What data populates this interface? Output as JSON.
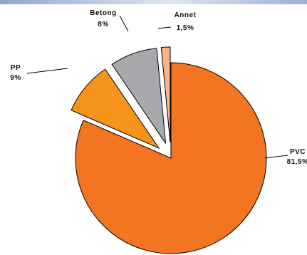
{
  "chart_data": {
    "type": "pie",
    "exploded": true,
    "slices": [
      {
        "label": "PVC",
        "value_text": "81,5%",
        "value": 81.5,
        "color": "#f47521"
      },
      {
        "label": "PP",
        "value_text": "9%",
        "value": 9,
        "color": "#f7941d"
      },
      {
        "label": "Betong",
        "value_text": "8%",
        "value": 8,
        "color": "#a7a9ac"
      },
      {
        "label": "Annet",
        "value_text": "1,5%",
        "value": 1.5,
        "color": "#f9b48a"
      }
    ],
    "title": "",
    "legend": "none"
  }
}
